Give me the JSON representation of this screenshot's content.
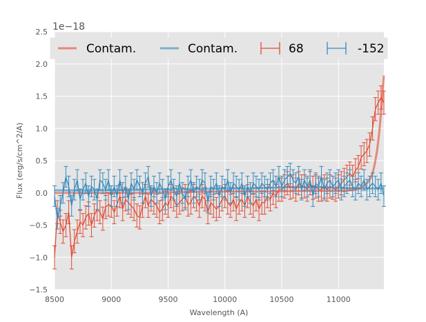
{
  "chart_data": {
    "type": "line",
    "xlabel": "Wavelength (A)",
    "ylabel": "Flux (erg/s/cm^2/A)",
    "y_offset_label": "1e−18",
    "xlim": [
      8500,
      11400
    ],
    "ylim": [
      -1.5,
      2.5
    ],
    "x_ticks": [
      8500,
      9000,
      9500,
      10000,
      10500,
      11000
    ],
    "y_ticks": [
      -1.5,
      -1.0,
      -0.5,
      0.0,
      0.5,
      1.0,
      1.5,
      2.0,
      2.5
    ],
    "x_tick_labels": [
      "8500",
      "9000",
      "9500",
      "10000",
      "10500",
      "11000"
    ],
    "y_tick_labels": [
      "−1.5",
      "−1.0",
      "−0.5",
      "0.0",
      "0.5",
      "1.0",
      "1.5",
      "2.0",
      "2.5"
    ],
    "grid": true,
    "legend_placement": "top",
    "colors": {
      "red": "#E24A33",
      "blue": "#348ABD",
      "background": "#E5E5E5",
      "grid": "#FFFFFF"
    },
    "legend": [
      {
        "label": "Contam.",
        "kind": "line",
        "color": "#E24A33"
      },
      {
        "label": "Contam.",
        "kind": "line",
        "color": "#348ABD"
      },
      {
        "label": "68",
        "kind": "errorbar",
        "color": "#E24A33"
      },
      {
        "label": "-152",
        "kind": "errorbar",
        "color": "#348ABD"
      }
    ],
    "contam_red": {
      "x": [
        8500,
        8800,
        9200,
        9600,
        10000,
        10400,
        10700,
        10900,
        11000,
        11100,
        11150,
        11200,
        11250,
        11280,
        11300,
        11320,
        11340,
        11360,
        11380,
        11400
      ],
      "y": [
        0.0,
        0.0,
        0.0,
        0.01,
        0.02,
        0.02,
        0.03,
        0.03,
        0.03,
        0.04,
        0.05,
        0.08,
        0.15,
        0.22,
        0.3,
        0.45,
        0.65,
        0.95,
        1.35,
        1.82
      ]
    },
    "contam_blue": {
      "x": [
        8500,
        8800,
        9200,
        9600,
        9800,
        10000,
        10200,
        10400,
        10600,
        10800,
        11000,
        11200,
        11400
      ],
      "y": [
        0.04,
        0.04,
        0.05,
        0.06,
        0.06,
        0.07,
        0.07,
        0.08,
        0.09,
        0.09,
        0.08,
        0.07,
        0.07
      ]
    },
    "series": [
      {
        "name": "68",
        "color": "#E24A33",
        "x": [
          8500,
          8525,
          8550,
          8575,
          8600,
          8625,
          8650,
          8675,
          8700,
          8725,
          8750,
          8775,
          8800,
          8825,
          8850,
          8875,
          8900,
          8925,
          8950,
          8975,
          9000,
          9025,
          9050,
          9075,
          9100,
          9125,
          9150,
          9175,
          9200,
          9225,
          9250,
          9275,
          9300,
          9325,
          9350,
          9375,
          9400,
          9425,
          9450,
          9475,
          9500,
          9525,
          9550,
          9575,
          9600,
          9625,
          9650,
          9675,
          9700,
          9725,
          9750,
          9775,
          9800,
          9825,
          9850,
          9875,
          9900,
          9925,
          9950,
          9975,
          10000,
          10025,
          10050,
          10075,
          10100,
          10125,
          10150,
          10175,
          10200,
          10225,
          10250,
          10275,
          10300,
          10325,
          10350,
          10375,
          10400,
          10425,
          10450,
          10475,
          10500,
          10525,
          10550,
          10575,
          10600,
          10625,
          10650,
          10675,
          10700,
          10725,
          10750,
          10775,
          10800,
          10825,
          10850,
          10875,
          10900,
          10925,
          10950,
          10975,
          11000,
          11025,
          11050,
          11075,
          11100,
          11125,
          11150,
          11175,
          11200,
          11225,
          11250,
          11275,
          11300,
          11325,
          11350,
          11375,
          11400
        ],
        "y": [
          -1.0,
          -0.3,
          -0.45,
          -0.6,
          -0.5,
          -0.3,
          -1.0,
          -0.75,
          -0.6,
          -0.45,
          -0.5,
          -0.38,
          -0.32,
          -0.5,
          -0.35,
          -0.25,
          -0.3,
          -0.4,
          -0.22,
          -0.18,
          -0.2,
          -0.3,
          -0.18,
          -0.05,
          -0.25,
          -0.1,
          -0.15,
          -0.2,
          -0.25,
          -0.35,
          -0.38,
          -0.2,
          -0.05,
          -0.2,
          -0.1,
          -0.15,
          -0.2,
          -0.3,
          -0.25,
          -0.15,
          -0.2,
          -0.05,
          -0.1,
          -0.2,
          -0.15,
          -0.1,
          -0.05,
          -0.18,
          -0.15,
          -0.05,
          -0.1,
          -0.2,
          -0.05,
          -0.1,
          -0.3,
          -0.15,
          -0.2,
          -0.25,
          -0.2,
          -0.1,
          -0.05,
          -0.15,
          -0.2,
          -0.1,
          -0.25,
          -0.15,
          -0.1,
          -0.2,
          -0.05,
          -0.15,
          -0.2,
          -0.1,
          -0.25,
          -0.15,
          -0.15,
          -0.05,
          -0.1,
          0.0,
          -0.05,
          0.05,
          0.05,
          0.1,
          0.15,
          0.08,
          0.1,
          0.05,
          0.15,
          0.1,
          0.1,
          0.05,
          0.15,
          0.08,
          0.1,
          0.05,
          0.05,
          0.1,
          0.05,
          0.1,
          0.08,
          0.05,
          0.1,
          0.15,
          0.2,
          0.25,
          0.3,
          0.25,
          0.35,
          0.4,
          0.55,
          0.6,
          0.65,
          0.75,
          1.0,
          1.3,
          1.4,
          1.48,
          1.4
        ],
        "err": 0.18
      },
      {
        "name": "-152",
        "color": "#348ABD",
        "x": [
          8500,
          8525,
          8550,
          8575,
          8600,
          8625,
          8650,
          8675,
          8700,
          8725,
          8750,
          8775,
          8800,
          8825,
          8850,
          8875,
          8900,
          8925,
          8950,
          8975,
          9000,
          9025,
          9050,
          9075,
          9100,
          9125,
          9150,
          9175,
          9200,
          9225,
          9250,
          9275,
          9300,
          9325,
          9350,
          9375,
          9400,
          9425,
          9450,
          9475,
          9500,
          9525,
          9550,
          9575,
          9600,
          9625,
          9650,
          9675,
          9700,
          9725,
          9750,
          9775,
          9800,
          9825,
          9850,
          9875,
          9900,
          9925,
          9950,
          9975,
          10000,
          10025,
          10050,
          10075,
          10100,
          10125,
          10150,
          10175,
          10200,
          10225,
          10250,
          10275,
          10300,
          10325,
          10350,
          10375,
          10400,
          10425,
          10450,
          10475,
          10500,
          10525,
          10550,
          10575,
          10600,
          10625,
          10650,
          10675,
          10700,
          10725,
          10750,
          10775,
          10800,
          10825,
          10850,
          10875,
          10900,
          10925,
          10950,
          10975,
          11000,
          11025,
          11050,
          11075,
          11100,
          11125,
          11150,
          11175,
          11200,
          11225,
          11250,
          11275,
          11300,
          11325,
          11350,
          11375,
          11400
        ],
        "y": [
          -0.05,
          -0.4,
          -0.2,
          0.0,
          0.25,
          0.1,
          -0.2,
          0.05,
          0.2,
          -0.1,
          0.05,
          0.15,
          -0.05,
          0.1,
          0.05,
          -0.1,
          0.2,
          0.15,
          0.05,
          0.2,
          -0.05,
          0.1,
          -0.05,
          0.2,
          0.0,
          0.1,
          -0.1,
          0.15,
          0.05,
          0.2,
          0.1,
          0.0,
          0.15,
          0.25,
          -0.05,
          0.1,
          0.0,
          0.15,
          0.05,
          -0.1,
          0.1,
          0.2,
          0.05,
          -0.05,
          0.15,
          0.0,
          -0.1,
          0.1,
          0.2,
          0.0,
          0.1,
          0.05,
          0.2,
          0.15,
          -0.15,
          0.1,
          0.05,
          0.15,
          -0.05,
          0.1,
          0.05,
          0.2,
          0.0,
          0.15,
          0.1,
          0.05,
          0.15,
          -0.05,
          0.1,
          0.0,
          0.15,
          0.1,
          0.05,
          0.15,
          0.1,
          0.05,
          0.15,
          0.2,
          0.1,
          0.25,
          0.1,
          0.2,
          0.25,
          0.3,
          0.2,
          0.15,
          0.25,
          0.05,
          0.2,
          0.1,
          0.2,
          -0.05,
          0.15,
          0.1,
          0.25,
          0.05,
          0.15,
          0.2,
          0.1,
          0.15,
          0.2,
          0.05,
          0.1,
          0.15,
          0.2,
          0.1,
          0.05,
          0.15,
          0.1,
          0.2,
          0.05,
          0.1,
          0.15,
          0.1,
          0.05,
          0.15,
          -0.05
        ],
        "err": 0.16
      }
    ]
  }
}
